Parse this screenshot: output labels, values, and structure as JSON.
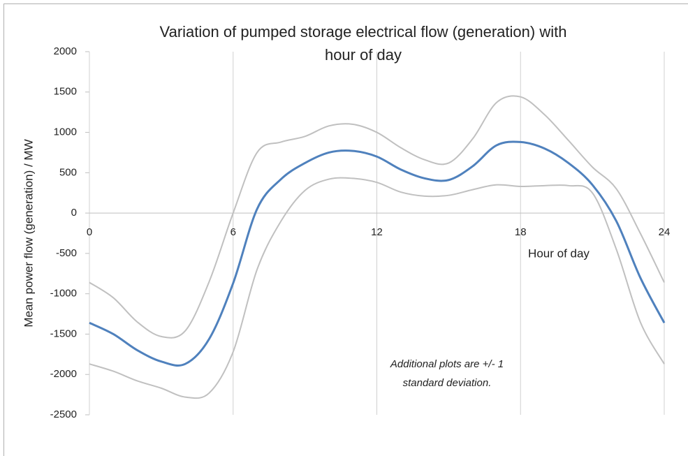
{
  "chart_data": {
    "type": "line",
    "title": [
      "Variation of pumped storage electrical flow (generation) with",
      "hour of day"
    ],
    "x_label": "Hour of day",
    "y_label": "Mean power flow (generation) / MW",
    "annotation": [
      "Additional plots are +/- 1",
      "standard deviation."
    ],
    "x": [
      0,
      1,
      2,
      3,
      4,
      5,
      6,
      7,
      8,
      9,
      10,
      11,
      12,
      13,
      14,
      15,
      16,
      17,
      18,
      19,
      20,
      21,
      22,
      23,
      24
    ],
    "series": [
      {
        "color": "#c0c0c0",
        "values": [
          -860,
          -1050,
          -1350,
          -1530,
          -1460,
          -850,
          0,
          750,
          880,
          950,
          1080,
          1100,
          1000,
          810,
          660,
          620,
          920,
          1370,
          1440,
          1220,
          900,
          570,
          300,
          -250,
          -860
        ]
      },
      {
        "color": "#c0c0c0",
        "values": [
          -1870,
          -1960,
          -2080,
          -2170,
          -2280,
          -2230,
          -1720,
          -700,
          -100,
          280,
          420,
          430,
          380,
          260,
          210,
          220,
          290,
          350,
          330,
          340,
          340,
          250,
          -450,
          -1350,
          -1870
        ]
      },
      {
        "color": "#4f81bd",
        "values": [
          -1360,
          -1500,
          -1700,
          -1840,
          -1870,
          -1560,
          -870,
          50,
          420,
          620,
          750,
          770,
          700,
          540,
          430,
          410,
          580,
          840,
          880,
          800,
          620,
          350,
          -100,
          -800,
          -1360
        ]
      }
    ],
    "xlim": [
      0,
      24
    ],
    "xticks": [
      0,
      6,
      12,
      18,
      24
    ],
    "ylim": [
      -2500,
      2000
    ],
    "yticks": [
      -2500,
      -2000,
      -1500,
      -1000,
      -500,
      0,
      500,
      1000,
      1500,
      2000
    ],
    "grid": true
  }
}
